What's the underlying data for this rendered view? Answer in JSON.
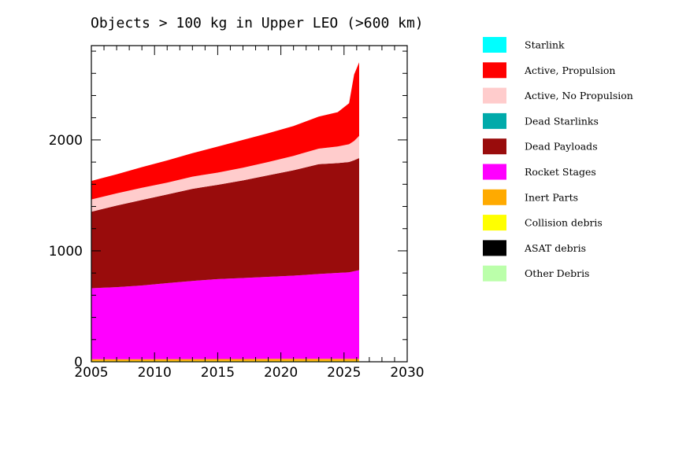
{
  "chart_data": {
    "type": "area",
    "stacked": true,
    "title": "Objects > 100 kg in Upper LEO (>600 km)",
    "xlabel": "",
    "ylabel": "",
    "xlim": [
      2005,
      2030
    ],
    "ylim": [
      0,
      2850
    ],
    "x_ticks": [
      2005,
      2010,
      2015,
      2020,
      2025,
      2030
    ],
    "y_ticks": [
      0,
      1000,
      2000
    ],
    "x_tick_labels": [
      "2005",
      "2010",
      "2015",
      "2020",
      "2025",
      "2030"
    ],
    "y_tick_labels": [
      "0",
      "1000",
      "2000"
    ],
    "legend_position": "right",
    "x": [
      2005,
      2007,
      2009,
      2011,
      2013,
      2015,
      2017,
      2019,
      2021,
      2023,
      2024.5,
      2025.4,
      2025.8,
      2026.2
    ],
    "series": [
      {
        "name": "Other Debris",
        "color": "#bbffaa",
        "values": [
          0,
          0,
          0,
          0,
          0,
          0,
          0,
          0,
          0,
          0,
          0,
          0,
          0,
          0
        ]
      },
      {
        "name": "ASAT debris",
        "color": "#000000",
        "values": [
          3,
          3,
          3,
          3,
          3,
          3,
          3,
          3,
          3,
          3,
          3,
          3,
          3,
          3
        ]
      },
      {
        "name": "Collision debris",
        "color": "#ffff00",
        "values": [
          5,
          5,
          5,
          5,
          5,
          5,
          5,
          5,
          5,
          5,
          5,
          5,
          5,
          5
        ]
      },
      {
        "name": "Inert Parts",
        "color": "#ffaa00",
        "values": [
          15,
          15,
          15,
          16,
          16,
          17,
          17,
          18,
          18,
          18,
          18,
          18,
          18,
          18
        ]
      },
      {
        "name": "Rocket Stages",
        "color": "#ff00ff",
        "values": [
          640,
          650,
          665,
          685,
          705,
          720,
          730,
          740,
          750,
          765,
          775,
          780,
          790,
          800
        ]
      },
      {
        "name": "Dead Payloads",
        "color": "#990c0c",
        "values": [
          690,
          735,
          770,
          800,
          830,
          850,
          880,
          915,
          950,
          990,
          990,
          995,
          1000,
          1010
        ]
      },
      {
        "name": "Dead Starlinks",
        "color": "#00aaaa",
        "values": [
          0,
          0,
          0,
          0,
          0,
          0,
          0,
          0,
          0,
          0,
          0,
          0,
          0,
          0
        ]
      },
      {
        "name": "Active, No Propulsion",
        "color": "#ffcccc",
        "values": [
          110,
          110,
          110,
          105,
          110,
          110,
          115,
          120,
          130,
          140,
          150,
          160,
          175,
          200
        ]
      },
      {
        "name": "Active, Propulsion",
        "color": "#ff0000",
        "values": [
          167,
          172,
          187,
          201,
          211,
          235,
          250,
          259,
          269,
          289,
          309,
          369,
          599,
          664
        ]
      },
      {
        "name": "Starlink",
        "color": "#00ffff",
        "values": [
          0,
          0,
          0,
          0,
          0,
          0,
          0,
          0,
          0,
          0,
          0,
          0,
          0,
          0
        ]
      }
    ],
    "legend": [
      {
        "name": "Starlink",
        "color": "#00ffff"
      },
      {
        "name": "Active, Propulsion",
        "color": "#ff0000"
      },
      {
        "name": "Active, No Propulsion",
        "color": "#ffcccc"
      },
      {
        "name": "Dead Starlinks",
        "color": "#00aaaa"
      },
      {
        "name": "Dead Payloads",
        "color": "#990c0c"
      },
      {
        "name": "Rocket Stages",
        "color": "#ff00ff"
      },
      {
        "name": "Inert Parts",
        "color": "#ffaa00"
      },
      {
        "name": "Collision debris",
        "color": "#ffff00"
      },
      {
        "name": "ASAT debris",
        "color": "#000000"
      },
      {
        "name": "Other Debris",
        "color": "#bbffaa"
      }
    ]
  }
}
